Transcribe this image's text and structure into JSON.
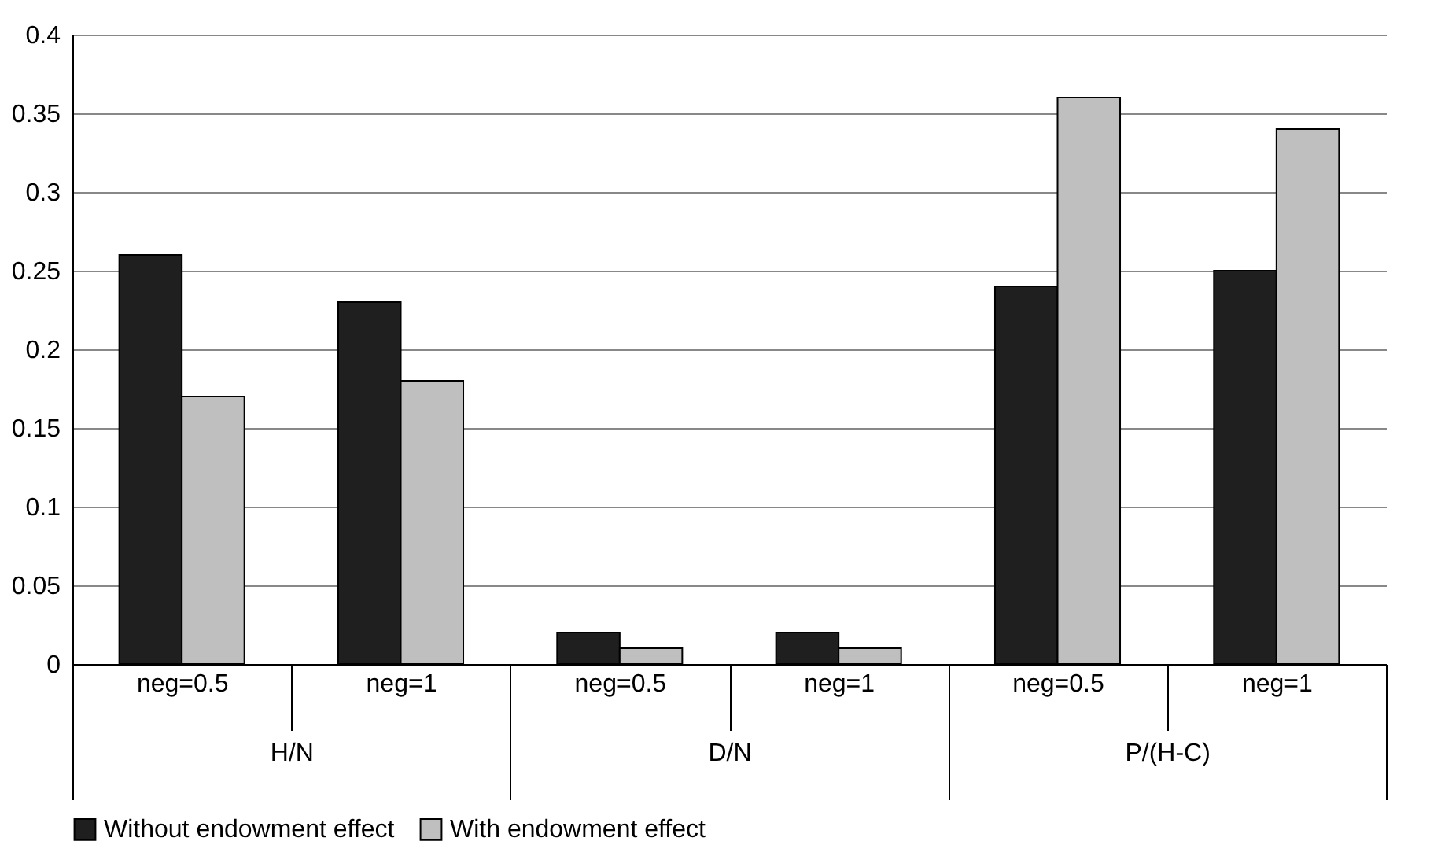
{
  "chart_data": {
    "type": "bar",
    "categories": [
      "neg=0.5",
      "neg=1",
      "neg=0.5",
      "neg=1",
      "neg=0.5",
      "neg=1"
    ],
    "series": [
      {
        "name": "Without endowment effect",
        "color": "#1f1f1f",
        "values": [
          0.26,
          0.23,
          0.02,
          0.02,
          0.24,
          0.25
        ]
      },
      {
        "name": "With endowment effect",
        "color": "#bfbfbf",
        "values": [
          0.17,
          0.18,
          0.01,
          0.01,
          0.36,
          0.34
        ]
      }
    ],
    "annotations": [
      "H/N",
      "D/N",
      "P/(H-C)"
    ],
    "ylim": [
      0,
      0.4
    ],
    "yticks": [
      0,
      0.05,
      0.1,
      0.15,
      0.2,
      0.25,
      0.3,
      0.35,
      0.4
    ],
    "grid": "y",
    "legend": "bottom"
  }
}
